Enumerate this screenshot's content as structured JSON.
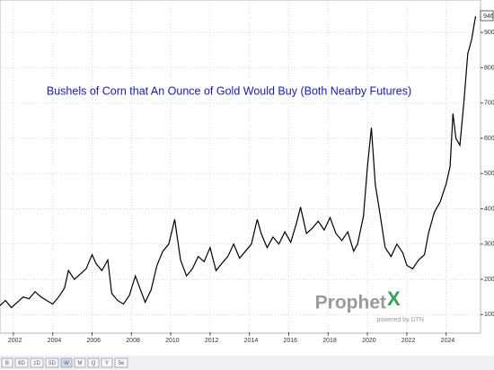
{
  "chart_data": {
    "type": "line",
    "title": "Bushels of Corn that An Ounce of Gold Would Buy (Both Nearby Futures)",
    "x": [
      2001.3,
      2001.6,
      2001.9,
      2002.2,
      2002.5,
      2002.8,
      2003.1,
      2003.4,
      2003.7,
      2004.0,
      2004.3,
      2004.6,
      2004.8,
      2005.1,
      2005.4,
      2005.7,
      2006.0,
      2006.2,
      2006.5,
      2006.8,
      2007.0,
      2007.3,
      2007.6,
      2007.9,
      2008.2,
      2008.4,
      2008.7,
      2009.0,
      2009.3,
      2009.6,
      2009.9,
      2010.2,
      2010.5,
      2010.8,
      2011.1,
      2011.4,
      2011.7,
      2012.0,
      2012.3,
      2012.6,
      2012.9,
      2013.2,
      2013.5,
      2013.8,
      2014.1,
      2014.4,
      2014.6,
      2014.9,
      2015.2,
      2015.5,
      2015.8,
      2016.1,
      2016.4,
      2016.6,
      2016.9,
      2017.2,
      2017.5,
      2017.8,
      2018.1,
      2018.4,
      2018.7,
      2019.0,
      2019.3,
      2019.5,
      2019.8,
      2020.0,
      2020.2,
      2020.4,
      2020.6,
      2020.9,
      2021.2,
      2021.5,
      2021.8,
      2022.0,
      2022.3,
      2022.6,
      2022.9,
      2023.1,
      2023.4,
      2023.7,
      2024.0,
      2024.2,
      2024.35,
      2024.5,
      2024.7,
      2024.9,
      2025.1,
      2025.3,
      2025.5
    ],
    "values": [
      125,
      140,
      120,
      135,
      150,
      145,
      165,
      150,
      140,
      130,
      150,
      175,
      225,
      200,
      215,
      230,
      270,
      245,
      225,
      255,
      160,
      140,
      130,
      155,
      210,
      180,
      135,
      170,
      240,
      280,
      300,
      370,
      255,
      210,
      230,
      265,
      250,
      290,
      225,
      245,
      265,
      300,
      260,
      280,
      300,
      370,
      330,
      290,
      320,
      300,
      335,
      305,
      360,
      405,
      330,
      345,
      365,
      340,
      375,
      330,
      310,
      335,
      280,
      300,
      380,
      520,
      630,
      470,
      400,
      290,
      265,
      300,
      275,
      240,
      230,
      255,
      270,
      330,
      390,
      420,
      470,
      520,
      670,
      600,
      580,
      700,
      840,
      880,
      946
    ],
    "color": "#000000",
    "xlim": [
      2001.32,
      2025.75
    ],
    "ylim": [
      50,
      992
    ],
    "xticks": [
      2002,
      2004,
      2006,
      2008,
      2010,
      2012,
      2014,
      2016,
      2018,
      2020,
      2022,
      2024
    ],
    "yticks": [
      100,
      200,
      300,
      400,
      500,
      600,
      700,
      800,
      900
    ],
    "grid": true
  },
  "toolbar": [
    "B",
    "8D",
    "1D",
    "5D",
    "W",
    "M",
    "Q",
    "Y",
    "5e"
  ],
  "watermark": {
    "brand": "Prophet",
    "brand_mark": "X",
    "tagline": "powered by DTN"
  }
}
